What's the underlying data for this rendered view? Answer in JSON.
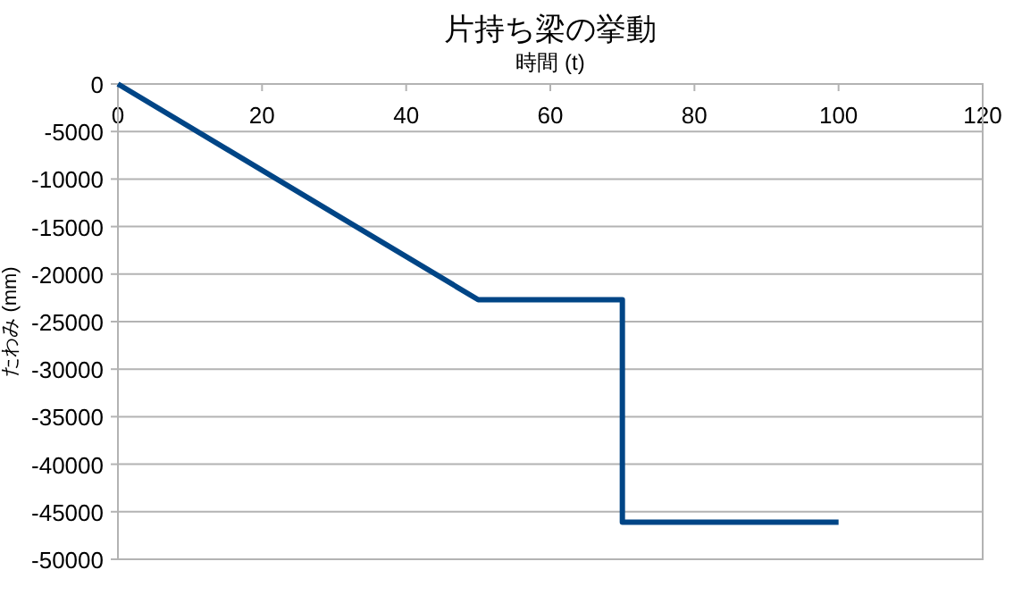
{
  "chart_data": {
    "type": "line",
    "title": "片持ち梁の挙動",
    "xlabel": "時間 (t)",
    "ylabel": "たわみ (mm)",
    "x": [
      0,
      50,
      70,
      70,
      100
    ],
    "series": [
      {
        "color": "#004586",
        "values": [
          0,
          -22700,
          -22700,
          -46100,
          -46100
        ]
      }
    ],
    "xlim": [
      0,
      120
    ],
    "xticks": [
      0,
      20,
      40,
      60,
      80,
      100,
      120
    ],
    "ylim": [
      -50000,
      0
    ],
    "yticks": [
      -50000,
      -45000,
      -40000,
      -35000,
      -30000,
      -25000,
      -20000,
      -15000,
      -10000,
      -5000,
      0
    ],
    "grid": "y",
    "marker": "none",
    "line_style": "solid"
  }
}
